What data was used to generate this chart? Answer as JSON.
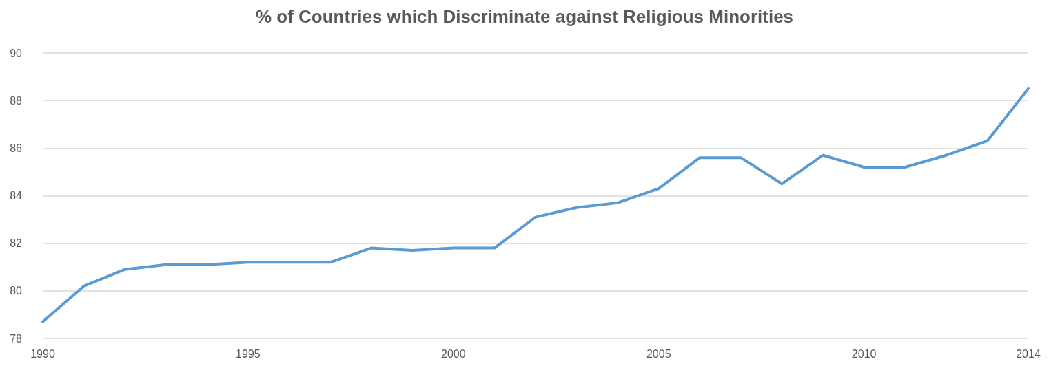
{
  "chart_data": {
    "type": "line",
    "title": "% of Countries which Discriminate against Religious Minorities",
    "x": [
      1990,
      1991,
      1992,
      1993,
      1994,
      1995,
      1996,
      1997,
      1998,
      1999,
      2000,
      2001,
      2002,
      2003,
      2004,
      2005,
      2006,
      2007,
      2008,
      2009,
      2010,
      2011,
      2012,
      2013,
      2014
    ],
    "series": [
      {
        "color": "#5b9bd5",
        "values": [
          78.7,
          80.2,
          80.9,
          81.1,
          81.1,
          81.2,
          81.2,
          81.2,
          81.8,
          81.7,
          81.8,
          81.8,
          83.1,
          83.5,
          83.7,
          84.3,
          85.6,
          85.6,
          84.5,
          85.7,
          85.2,
          85.2,
          85.7,
          86.3,
          88.5
        ]
      }
    ],
    "xlim": [
      1990,
      2014
    ],
    "xticks": [
      1990,
      1995,
      2000,
      2005,
      2010,
      2014
    ],
    "ylim": [
      78,
      90
    ],
    "yticks": [
      78,
      80,
      82,
      84,
      86,
      88,
      90
    ],
    "grid": "y",
    "marker": "none",
    "line_style": "solid"
  }
}
